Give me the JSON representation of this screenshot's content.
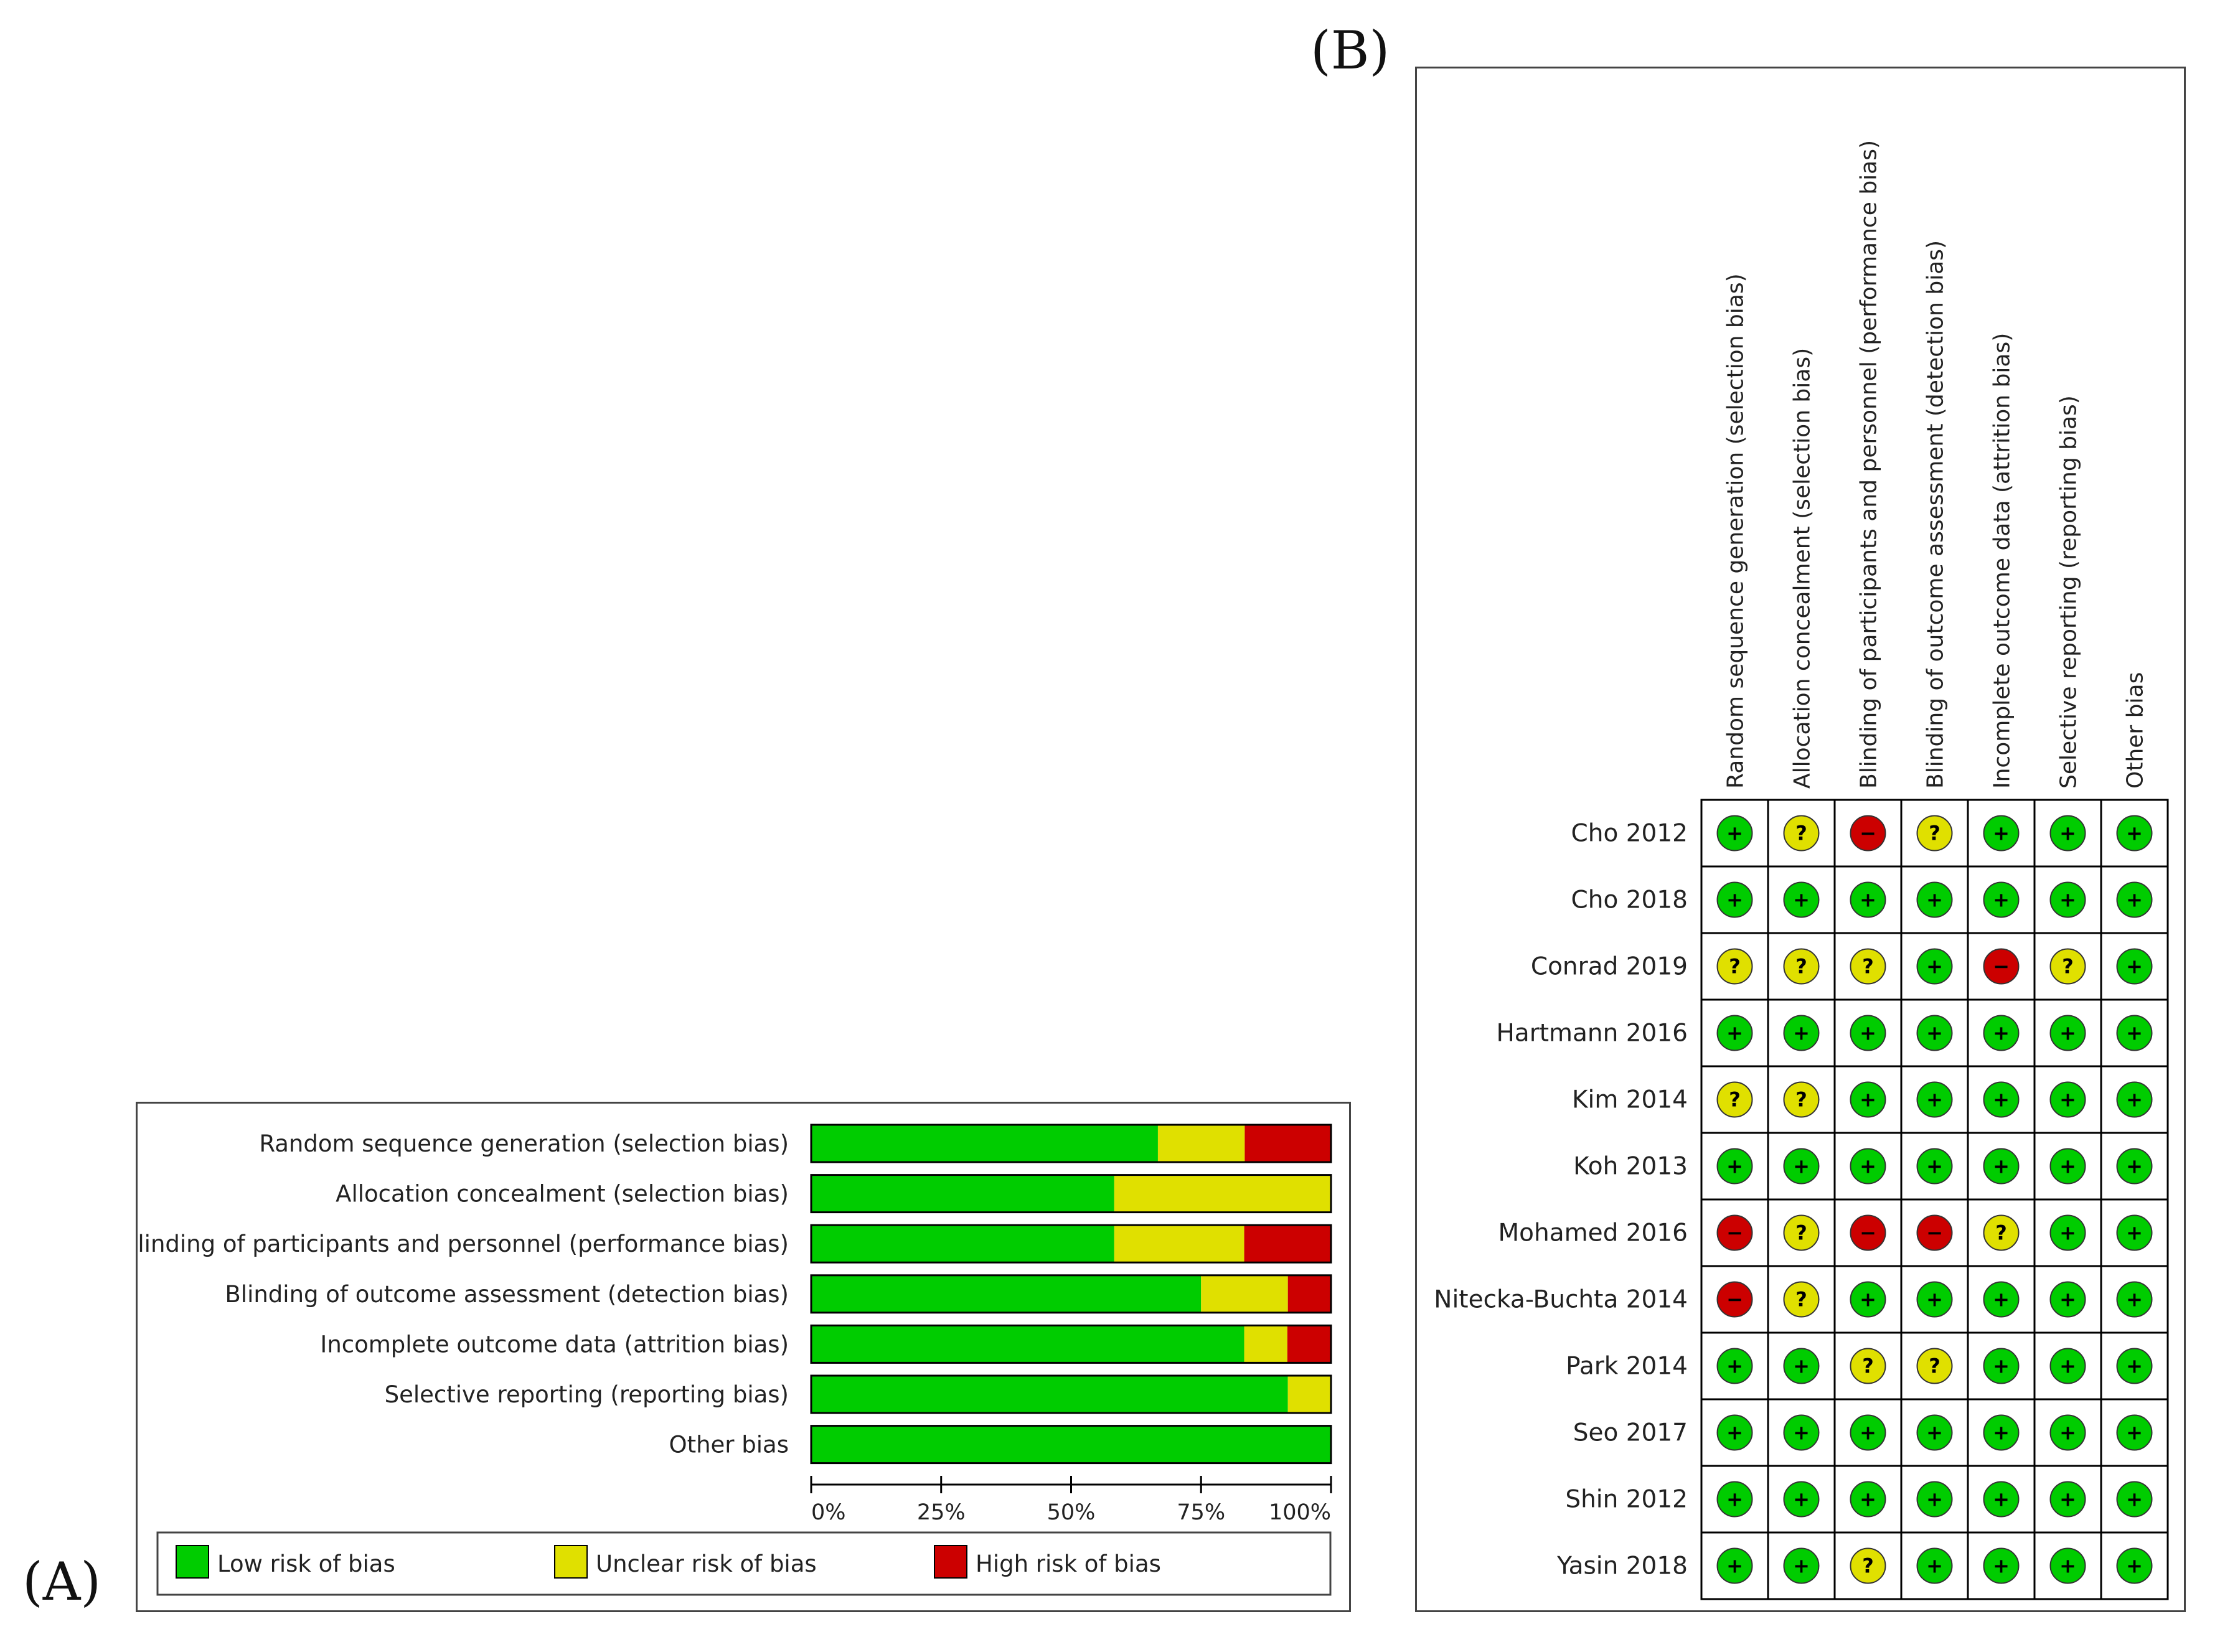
{
  "panel_a_label": "(A)",
  "panel_b_label": "(B)",
  "colors": {
    "low": "#00cc00",
    "unclear": "#e0e000",
    "high": "#cc0000"
  },
  "chart_data": [
    {
      "type": "bar",
      "orientation": "horizontal",
      "stacked": true,
      "categories": [
        "Random sequence generation (selection bias)",
        "Allocation concealment (selection bias)",
        "Blinding of participants and personnel (performance bias)",
        "Blinding of outcome assessment (detection bias)",
        "Incomplete outcome data (attrition bias)",
        "Selective reporting (reporting bias)",
        "Other bias"
      ],
      "series": [
        {
          "name": "Low risk of bias",
          "color": "#00cc00",
          "values": [
            66.7,
            58.3,
            58.3,
            75.0,
            83.3,
            91.7,
            100
          ]
        },
        {
          "name": "Unclear risk of bias",
          "color": "#e0e000",
          "values": [
            16.7,
            41.7,
            25.0,
            16.7,
            8.3,
            8.3,
            0
          ]
        },
        {
          "name": "High risk of bias",
          "color": "#cc0000",
          "values": [
            16.6,
            0,
            16.7,
            8.3,
            8.4,
            0,
            0
          ]
        }
      ],
      "x_ticks": [
        "0%",
        "25%",
        "50%",
        "75%",
        "100%"
      ],
      "xlim": [
        0,
        100
      ],
      "legend_position": "bottom"
    },
    {
      "type": "table",
      "columns": [
        "Random sequence generation (selection bias)",
        "Allocation concealment (selection bias)",
        "Blinding of participants and personnel (performance bias)",
        "Blinding of outcome assessment (detection bias)",
        "Incomplete outcome data (attrition bias)",
        "Selective reporting (reporting bias)",
        "Other bias"
      ],
      "rows": [
        {
          "study": "Cho 2012",
          "ratings": [
            "low",
            "unclear",
            "high",
            "unclear",
            "low",
            "low",
            "low"
          ]
        },
        {
          "study": "Cho 2018",
          "ratings": [
            "low",
            "low",
            "low",
            "low",
            "low",
            "low",
            "low"
          ]
        },
        {
          "study": "Conrad 2019",
          "ratings": [
            "unclear",
            "unclear",
            "unclear",
            "low",
            "high",
            "unclear",
            "low"
          ]
        },
        {
          "study": "Hartmann 2016",
          "ratings": [
            "low",
            "low",
            "low",
            "low",
            "low",
            "low",
            "low"
          ]
        },
        {
          "study": "Kim 2014",
          "ratings": [
            "unclear",
            "unclear",
            "low",
            "low",
            "low",
            "low",
            "low"
          ]
        },
        {
          "study": "Koh 2013",
          "ratings": [
            "low",
            "low",
            "low",
            "low",
            "low",
            "low",
            "low"
          ]
        },
        {
          "study": "Mohamed 2016",
          "ratings": [
            "high",
            "unclear",
            "high",
            "high",
            "unclear",
            "low",
            "low"
          ]
        },
        {
          "study": "Nitecka-Buchta 2014",
          "ratings": [
            "high",
            "unclear",
            "low",
            "low",
            "low",
            "low",
            "low"
          ]
        },
        {
          "study": "Park 2014",
          "ratings": [
            "low",
            "low",
            "unclear",
            "unclear",
            "low",
            "low",
            "low"
          ]
        },
        {
          "study": "Seo 2017",
          "ratings": [
            "low",
            "low",
            "low",
            "low",
            "low",
            "low",
            "low"
          ]
        },
        {
          "study": "Shin 2012",
          "ratings": [
            "low",
            "low",
            "low",
            "low",
            "low",
            "low",
            "low"
          ]
        },
        {
          "study": "Yasin 2018",
          "ratings": [
            "low",
            "low",
            "unclear",
            "low",
            "low",
            "low",
            "low"
          ]
        }
      ],
      "symbols": {
        "low": "+",
        "unclear": "?",
        "high": "−"
      }
    }
  ]
}
